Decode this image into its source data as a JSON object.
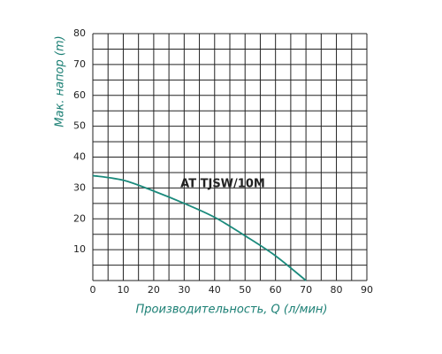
{
  "chart_data": {
    "type": "line",
    "annotation": "AT TJSW/10M",
    "x_label": "Производительность, Q (л/мин)",
    "y_label": "Мак. напор (m)",
    "x": [
      0,
      10,
      20,
      30,
      40,
      50,
      60,
      70
    ],
    "series": [
      {
        "color": "#1b8a7c",
        "values": [
          34,
          32.5,
          29,
          25,
          20.5,
          14.5,
          8,
          0
        ]
      }
    ],
    "xlim": [
      0,
      90
    ],
    "ylim": [
      0,
      80
    ],
    "xticks": [
      0,
      10,
      20,
      30,
      40,
      50,
      60,
      70,
      80,
      90
    ],
    "yticks": [
      10,
      20,
      30,
      40,
      50,
      60,
      70,
      80
    ],
    "xgrid": [
      0,
      5,
      10,
      15,
      20,
      25,
      30,
      35,
      40,
      45,
      50,
      55,
      60,
      65,
      70,
      75,
      80,
      85,
      90
    ],
    "ygrid": [
      0,
      5,
      10,
      15,
      20,
      25,
      30,
      35,
      40,
      45,
      50,
      55,
      60,
      65,
      70,
      75,
      80
    ],
    "grid": true
  }
}
